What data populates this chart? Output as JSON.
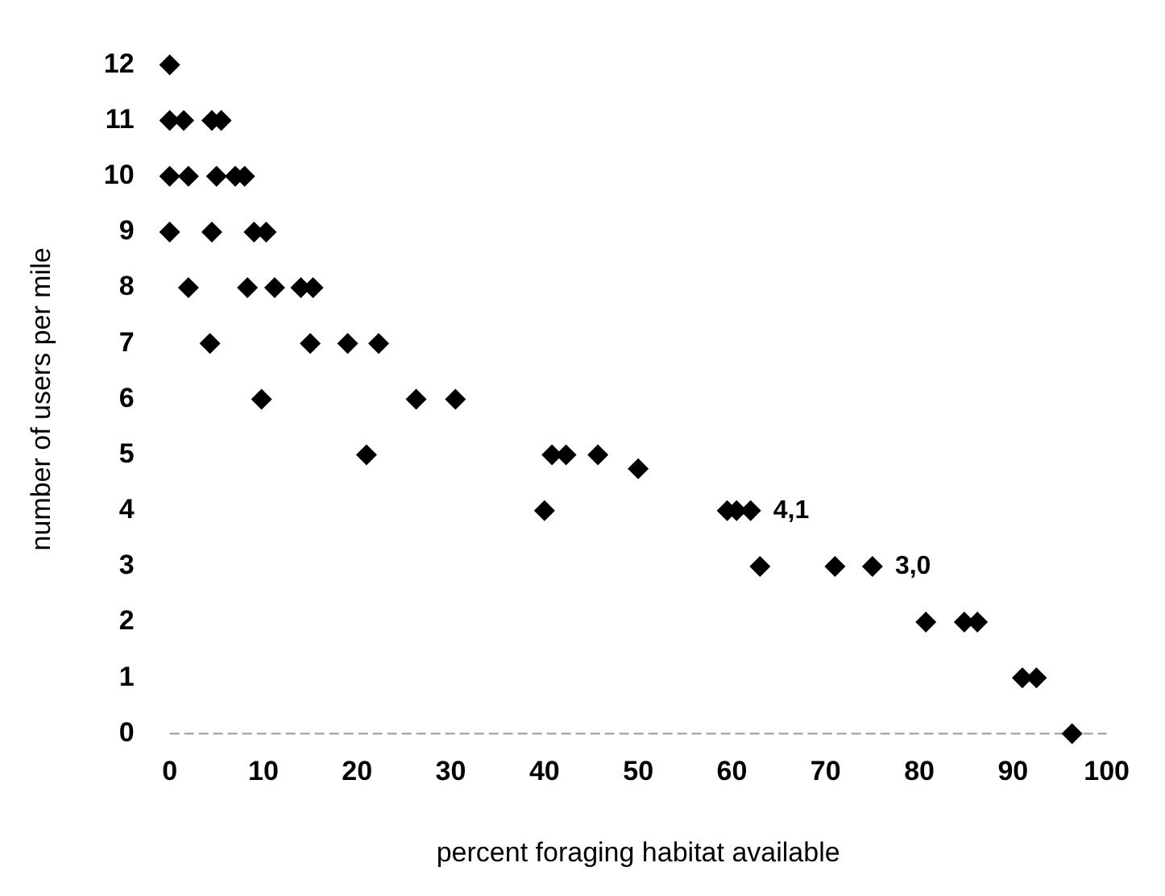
{
  "chart_data": {
    "type": "scatter",
    "xlabel": "percent foraging habitat available",
    "ylabel": "number of users per mile",
    "x": [
      0,
      0,
      1.5,
      4.5,
      5.5,
      0,
      2,
      5,
      7,
      8,
      0,
      4.5,
      9,
      10.3,
      2,
      8.3,
      11.2,
      14,
      15.3,
      4.3,
      15,
      19,
      22.3,
      9.8,
      26.3,
      30.5,
      21,
      40.8,
      42.3,
      45.7,
      50,
      40,
      59.5,
      60.5,
      62,
      63,
      71,
      75,
      80.7,
      84.8,
      86.2,
      91,
      92.5,
      96.3
    ],
    "series": [
      {
        "color": "#000000",
        "values": [
          12,
          11,
          11,
          11,
          11,
          10,
          10,
          10,
          10,
          10,
          9,
          9,
          9,
          9,
          8,
          8,
          8,
          8,
          8,
          7,
          7,
          7,
          7,
          6,
          6,
          6,
          5,
          5,
          5,
          5,
          4.75,
          4,
          4,
          4,
          4,
          3,
          3,
          3,
          2,
          2,
          2,
          1,
          1,
          0
        ]
      }
    ],
    "xlim": [
      0,
      100
    ],
    "xticks": [
      0,
      10,
      20,
      30,
      40,
      50,
      60,
      70,
      80,
      90,
      100
    ],
    "ylim": [
      0,
      12
    ],
    "yticks": [
      0,
      1,
      2,
      3,
      4,
      5,
      6,
      7,
      8,
      9,
      10,
      11,
      12
    ],
    "annotations": [
      {
        "text": "4,1",
        "x": 62,
        "y": 4
      },
      {
        "text": "3,0",
        "x": 75,
        "y": 3
      }
    ],
    "marker": "diamond",
    "grid": false,
    "legend": false
  }
}
